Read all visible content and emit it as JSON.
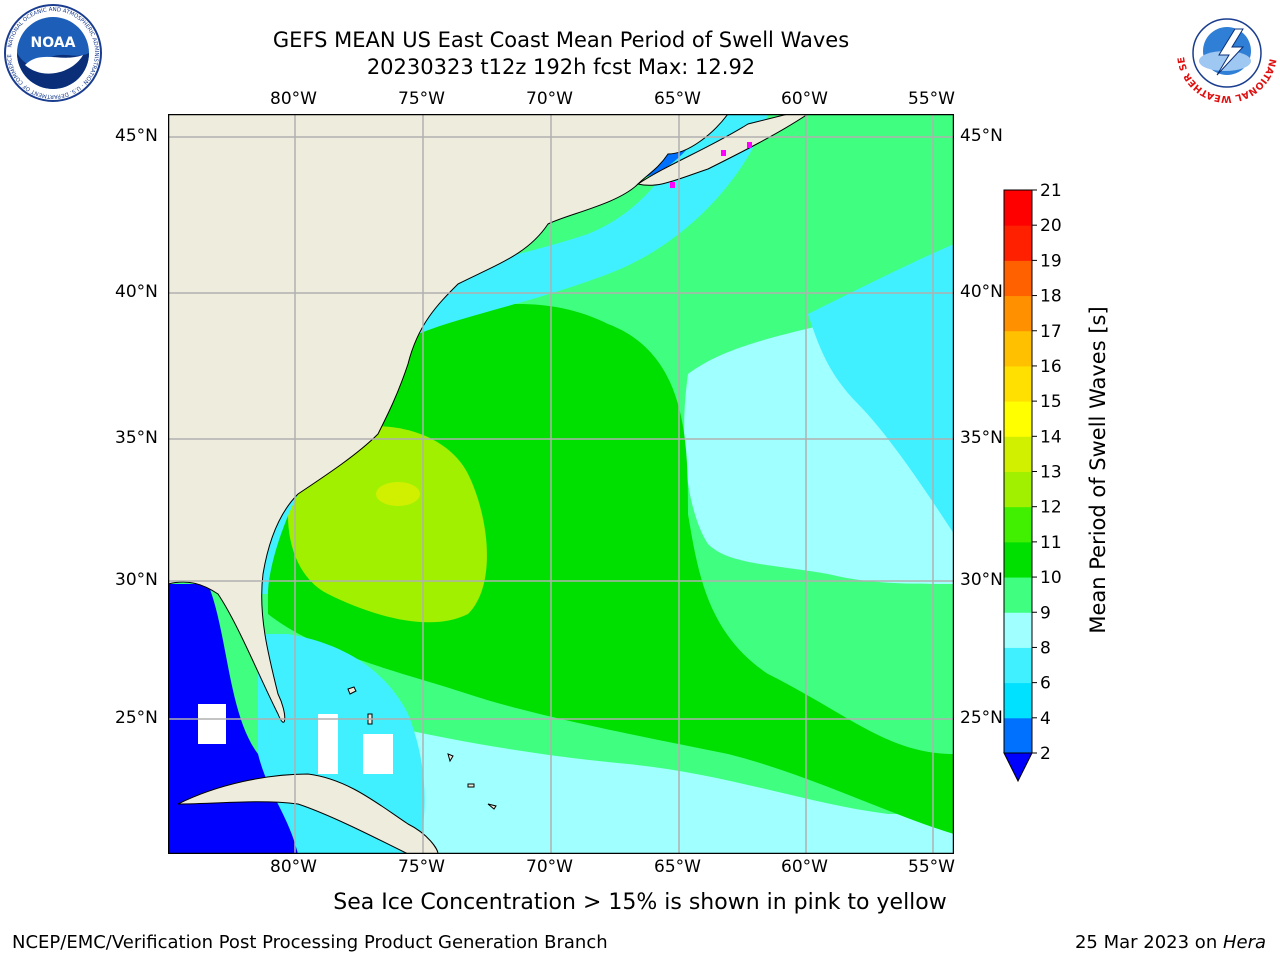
{
  "title": {
    "line1": "GEFS MEAN US East Coast Mean Period of Swell Waves",
    "line2": "20230323 t12z 192h fcst   Max: 12.92"
  },
  "map": {
    "lon_labels": [
      "80°W",
      "75°W",
      "70°W",
      "65°W",
      "60°W",
      "55°W"
    ],
    "lat_labels": [
      "45°N",
      "40°N",
      "35°N",
      "30°N",
      "25°N"
    ],
    "colors": {
      "land": "#eeecdc",
      "grid": "#b0b0b0",
      "coast": "#000000",
      "ice": "#ff00ff"
    }
  },
  "colorbar": {
    "label": "Mean Period of Swell Waves [s]",
    "ticks": [
      "2",
      "4",
      "6",
      "8",
      "9",
      "10",
      "11",
      "12",
      "13",
      "14",
      "15",
      "16",
      "17",
      "18",
      "19",
      "20",
      "21"
    ],
    "colors": [
      "#0000ff",
      "#0070ff",
      "#00e0ff",
      "#40f0ff",
      "#a0ffff",
      "#40ff80",
      "#00e000",
      "#40f000",
      "#a0f000",
      "#d0f000",
      "#ffff00",
      "#ffe000",
      "#ffc000",
      "#ff9000",
      "#ff6000",
      "#ff2000",
      "#ff0000"
    ]
  },
  "caption": "Sea Ice Concentration > 15% is shown in pink to yellow",
  "footer": {
    "left": "NCEP/EMC/Verification Post Processing Product Generation Branch",
    "date": "25 Mar 2023 on ",
    "machine": "Hera"
  },
  "logos": {
    "noaa_text": "NOAA",
    "noaa_ring": "NATIONAL OCEANIC AND ATMOSPHERIC ADMINISTRATION · U.S. DEPARTMENT OF COMMERCE",
    "nws_ring": "NATIONAL WEATHER SERVICE"
  }
}
